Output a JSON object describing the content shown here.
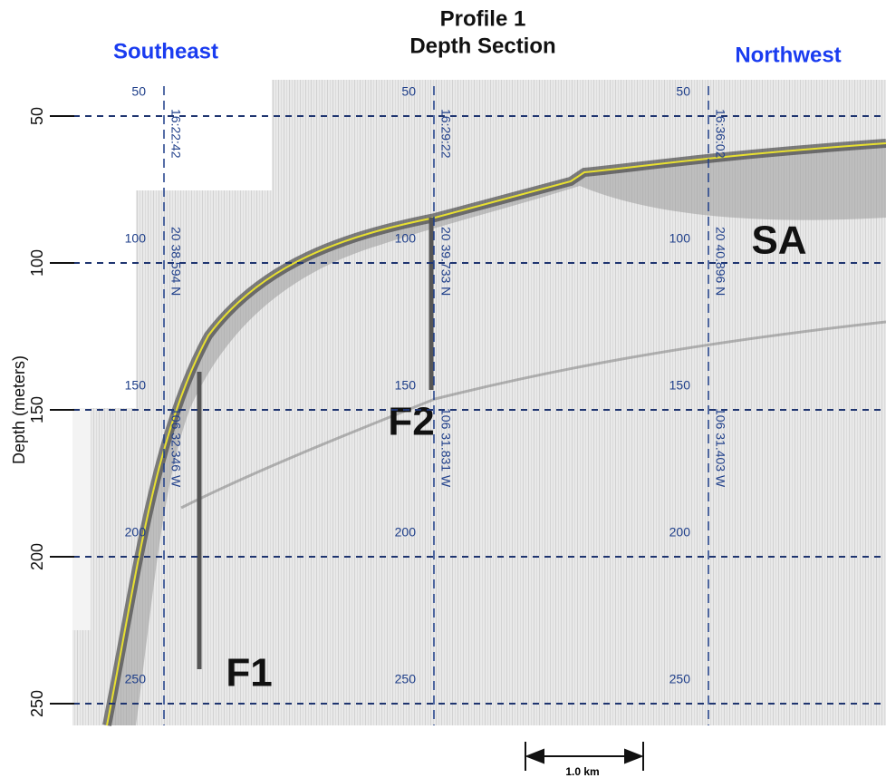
{
  "title": [
    "Profile 1",
    "Depth Section"
  ],
  "directions": {
    "left": "Southeast",
    "right": "Northwest"
  },
  "y_axis": {
    "label": "Depth (meters)",
    "ticks": [
      50,
      100,
      150,
      200,
      250
    ]
  },
  "fixes": [
    {
      "time": "16:22:42",
      "lat": "20 38.594 N",
      "lon": "106 32.346 W"
    },
    {
      "time": "16:29:22",
      "lat": "20 39.733 N",
      "lon": "106 31.831 W"
    },
    {
      "time": "16:36:02",
      "lat": "20 40.896 N",
      "lon": "106 31.403 W"
    }
  ],
  "annotations": [
    "F1",
    "F2",
    "SA"
  ],
  "scale_bar": "1.0 km"
}
